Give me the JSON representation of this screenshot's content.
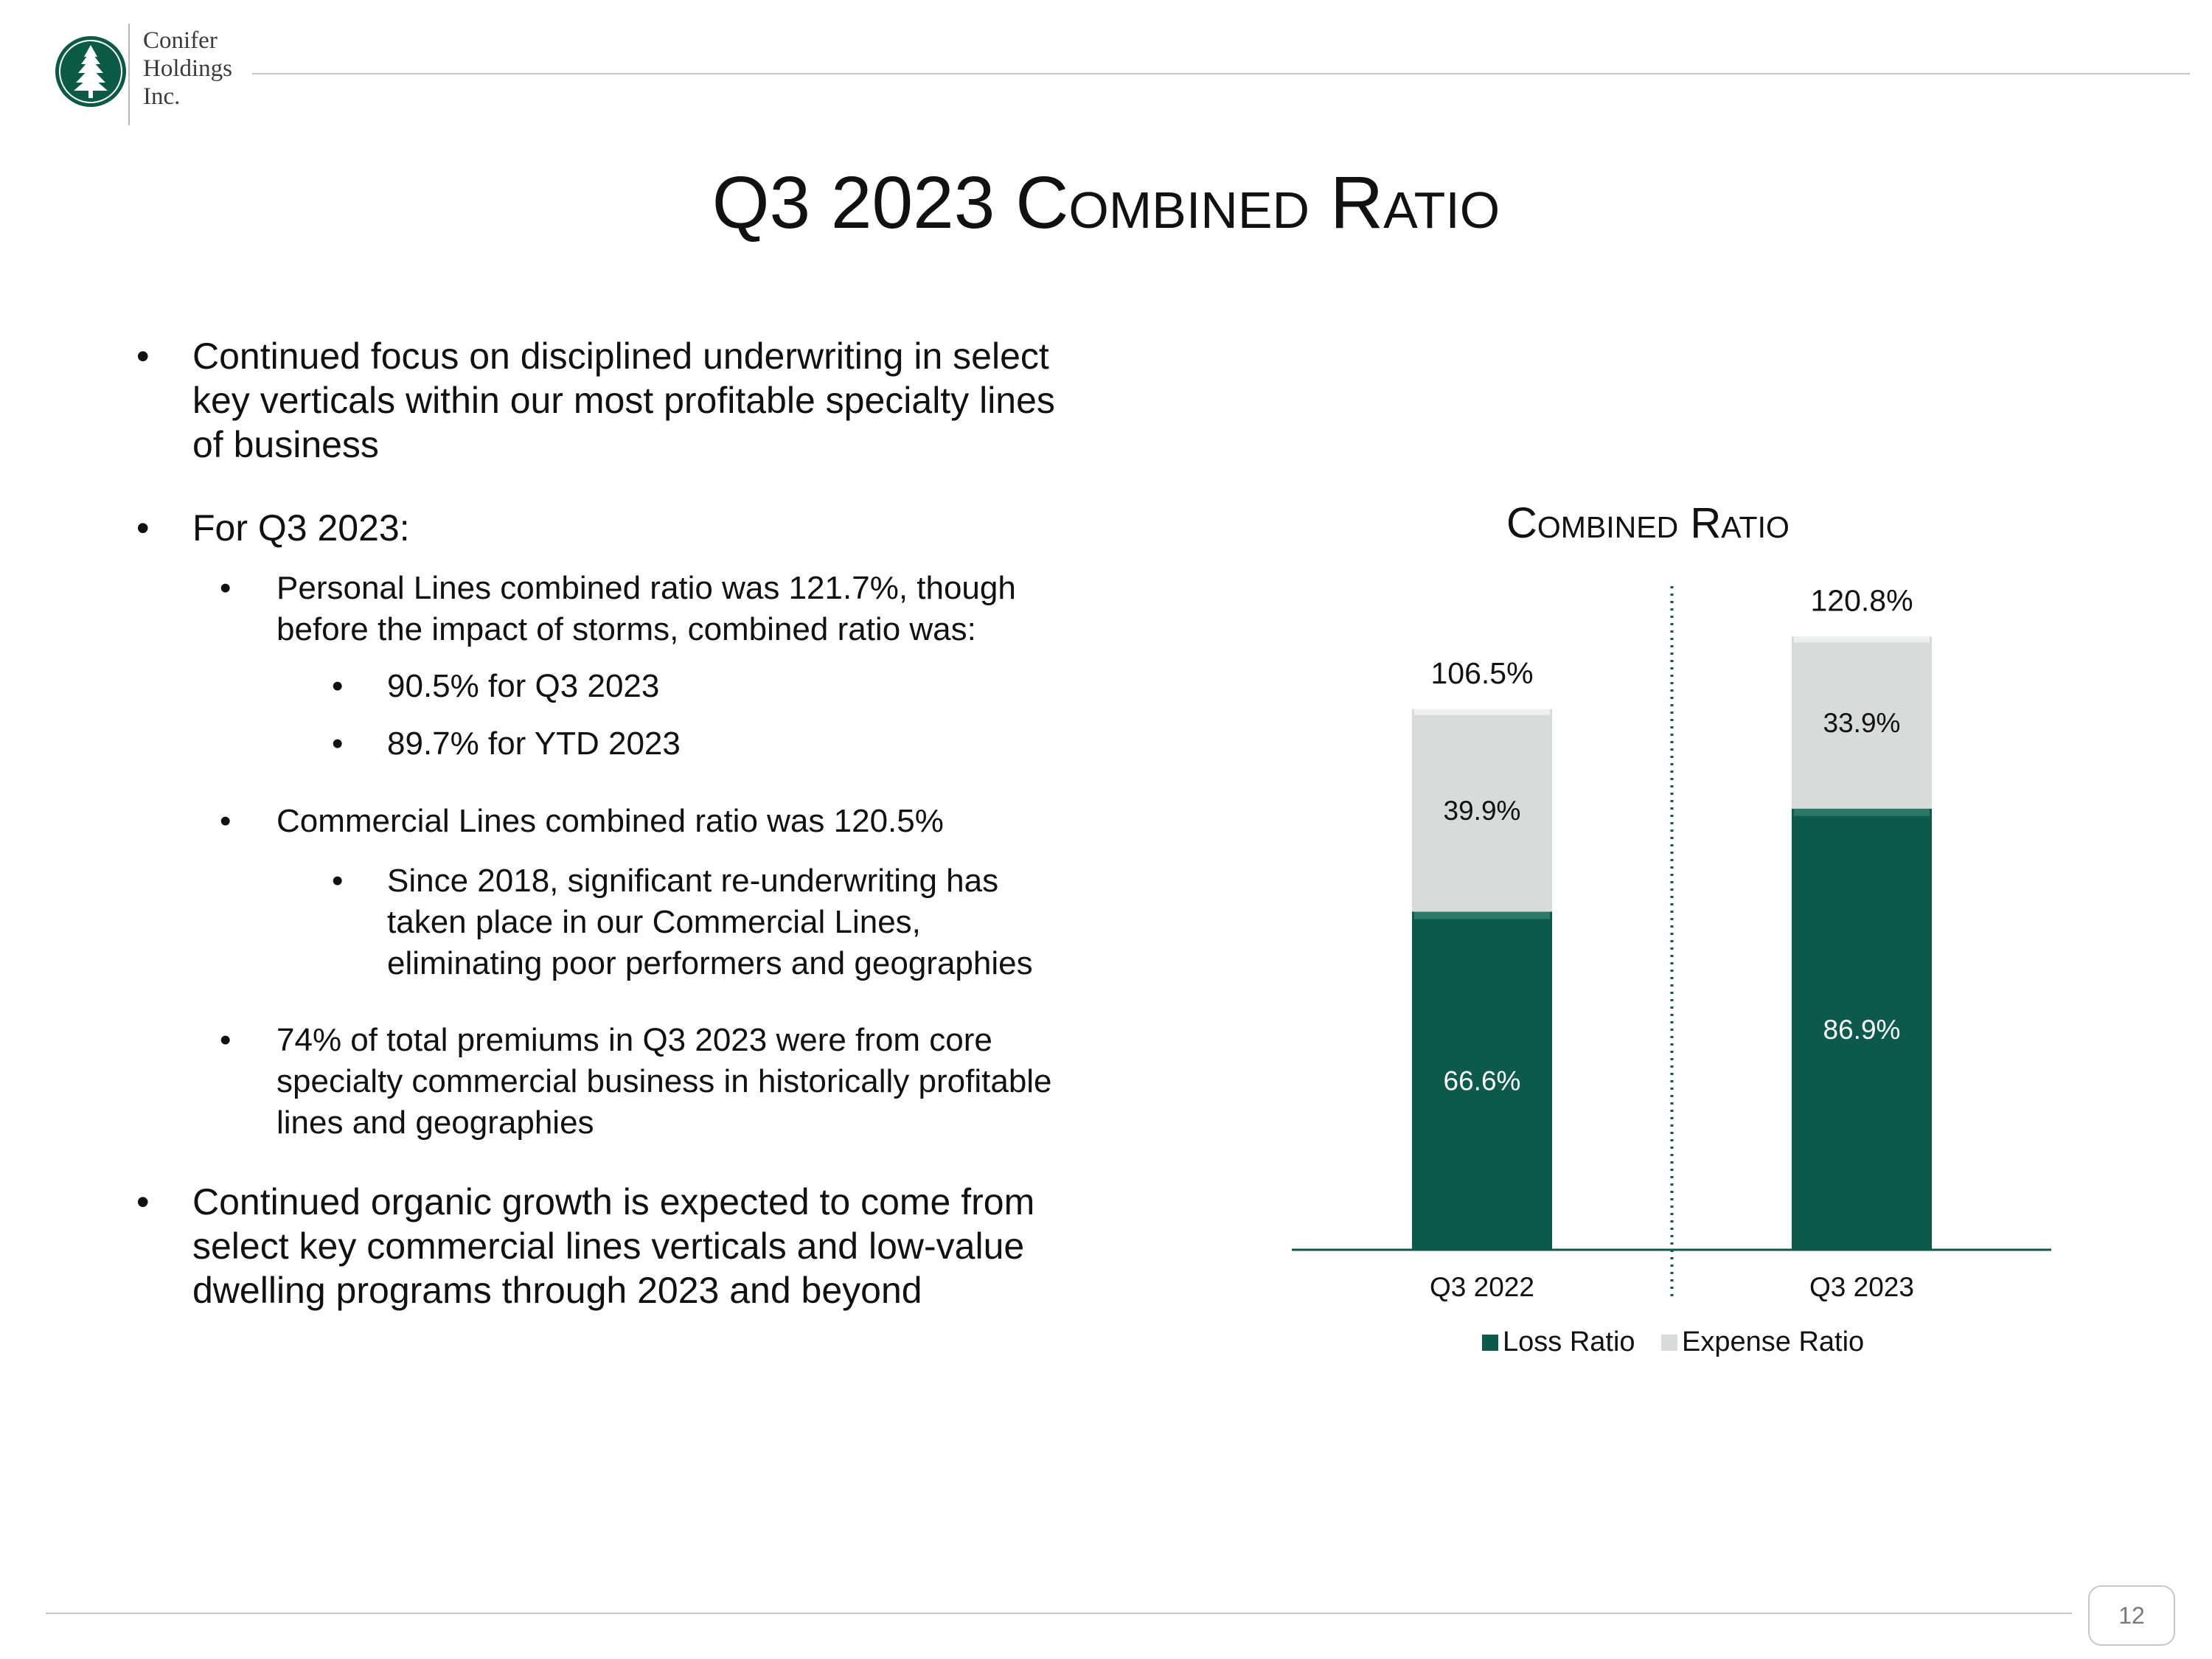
{
  "logo": {
    "line1": "Conifer",
    "line2": "Holdings",
    "line3": "Inc.",
    "color": "#0b5a46"
  },
  "title": {
    "lead": "Q3 2023 ",
    "small_caps": "Combined Ratio"
  },
  "bullets": [
    {
      "lines": [
        "Continued focus on disciplined underwriting in select",
        "key verticals within our most profitable specialty lines",
        "of business"
      ]
    },
    {
      "lines": [
        "For Q3 2023:"
      ]
    },
    {
      "lines": [
        "Personal Lines combined ratio was 121.7%, though",
        "before the impact of storms, combined ratio was:"
      ]
    },
    {
      "lines": [
        "90.5% for Q3 2023"
      ]
    },
    {
      "lines": [
        "89.7% for YTD 2023"
      ]
    },
    {
      "lines": [
        "Commercial Lines combined ratio was 120.5%"
      ]
    },
    {
      "lines": [
        "Since 2018, significant re-underwriting has",
        "taken place in our Commercial Lines,",
        "eliminating poor performers and geographies"
      ]
    },
    {
      "lines": [
        "74% of total premiums in Q3 2023 were from core",
        "specialty commercial business in historically profitable",
        "lines and geographies"
      ]
    },
    {
      "lines": [
        "Continued organic growth is expected to come from",
        "select key commercial lines verticals and low-value",
        "dwelling programs through 2023 and beyond"
      ]
    }
  ],
  "bullet_glyph": "•",
  "chart_data": {
    "type": "bar",
    "stacked": true,
    "title": "Combined Ratio",
    "categories": [
      "Q3 2022",
      "Q3 2023"
    ],
    "series": [
      {
        "name": "Loss Ratio",
        "values": [
          66.6,
          86.9
        ],
        "color": "#0b5a4b",
        "labels": [
          "66.6%",
          "86.9%"
        ]
      },
      {
        "name": "Expense Ratio",
        "values": [
          39.9,
          33.9
        ],
        "color": "#d7dbd9",
        "labels": [
          "39.9%",
          "33.9%"
        ]
      }
    ],
    "totals": [
      106.5,
      120.8
    ],
    "total_labels": [
      "106.5%",
      "120.8%"
    ],
    "ylim": [
      0,
      130
    ],
    "legend": "bottom",
    "grid": false,
    "divider": "dotted vertical line between categories"
  },
  "page_number": "12"
}
